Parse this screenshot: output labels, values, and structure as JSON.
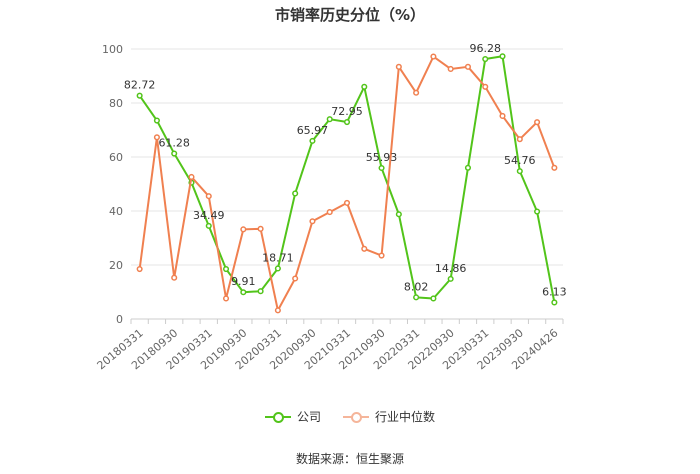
{
  "title": "市销率历史分位（%）",
  "source": "数据来源：恒生聚源",
  "colors": {
    "company": "#52c41a",
    "industry": "#f08050",
    "grid": "#e6e6e6",
    "axis": "#999999"
  },
  "chart_data": {
    "type": "line",
    "title": "市销率历史分位（%）",
    "x": [
      "20180331",
      "20180630",
      "20180930",
      "20181231",
      "20190331",
      "20190630",
      "20190930",
      "20191231",
      "20200331",
      "20200630",
      "20200930",
      "20201231",
      "20210331",
      "20210630",
      "20210930",
      "20211231",
      "20220331",
      "20220630",
      "20220930",
      "20221231",
      "20230331",
      "20230630",
      "20230930",
      "20231231",
      "20240426"
    ],
    "x_tick_labels": [
      "20180331",
      "20180930",
      "20190331",
      "20190930",
      "20200331",
      "20200930",
      "20210331",
      "20210930",
      "20220331",
      "20220930",
      "20230331",
      "20230930",
      "20240426"
    ],
    "y_ticks": [
      0,
      20,
      40,
      60,
      80,
      100
    ],
    "ylim": [
      0,
      100
    ],
    "grid": true,
    "legend_position": "bottom",
    "series": [
      {
        "name": "公司",
        "values": [
          82.72,
          73.5,
          61.28,
          50.5,
          34.49,
          18.5,
          9.91,
          10.3,
          18.71,
          46.5,
          65.97,
          74.0,
          72.95,
          86.0,
          55.93,
          38.8,
          8.02,
          7.6,
          14.86,
          56.0,
          96.28,
          97.3,
          54.76,
          39.8,
          6.13
        ],
        "labels": {
          "0": "82.72",
          "2": "61.28",
          "4": "34.49",
          "6": "9.91",
          "8": "18.71",
          "10": "65.97",
          "12": "72.95",
          "14": "55.93",
          "16": "8.02",
          "18": "14.86",
          "20": "96.28",
          "22": "54.76",
          "24": "6.13"
        }
      },
      {
        "name": "行业中位数",
        "values": [
          18.5,
          67.3,
          15.3,
          52.6,
          45.5,
          7.6,
          33.2,
          33.4,
          3.2,
          15.0,
          36.2,
          39.6,
          43.0,
          26.0,
          23.5,
          93.4,
          83.8,
          97.2,
          92.6,
          93.4,
          86.0,
          75.2,
          66.6,
          72.9,
          56.0
        ]
      }
    ]
  }
}
